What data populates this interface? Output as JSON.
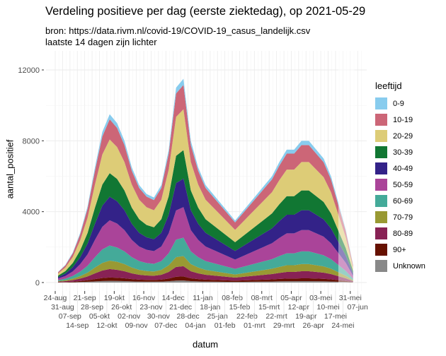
{
  "chart_data": {
    "type": "area",
    "stacked": true,
    "title": "Verdeling positieve per dag (eerste ziektedag), op 2021-05-29",
    "subtitle": [
      "bron: https://data.rivm.nl/covid-19/COVID-19_casus_landelijk.csv",
      "laatste 14 dagen zijn lichter"
    ],
    "xlabel": "datum",
    "ylabel": "aantal_positief",
    "ylim": [
      0,
      12500
    ],
    "yticks": [
      0,
      4000,
      8000,
      12000
    ],
    "xticks": [
      "24-aug",
      "31-aug",
      "07-sep",
      "14-sep",
      "21-sep",
      "28-sep",
      "05-okt",
      "12-okt",
      "19-okt",
      "26-okt",
      "02-nov",
      "09-nov",
      "16-nov",
      "23-nov",
      "30-nov",
      "07-dec",
      "14-dec",
      "21-dec",
      "28-dec",
      "04-jan",
      "11-jan",
      "18-jan",
      "25-jan",
      "01-feb",
      "08-feb",
      "15-feb",
      "22-feb",
      "01-mrt",
      "08-mrt",
      "15-mrt",
      "22-mrt",
      "29-mrt",
      "05-apr",
      "12-apr",
      "19-apr",
      "26-apr",
      "03-mei",
      "10-mei",
      "17-mei",
      "24-mei",
      "31-mei",
      "07-jun"
    ],
    "x": [
      "24-aug",
      "31-aug",
      "07-sep",
      "14-sep",
      "21-sep",
      "28-sep",
      "05-okt",
      "12-okt",
      "19-okt",
      "26-okt",
      "02-nov",
      "09-nov",
      "16-nov",
      "23-nov",
      "30-nov",
      "07-dec",
      "14-dec",
      "21-dec",
      "28-dec",
      "04-jan",
      "11-jan",
      "18-jan",
      "25-jan",
      "01-feb",
      "08-feb",
      "15-feb",
      "22-feb",
      "01-mrt",
      "08-mrt",
      "15-mrt",
      "22-mrt",
      "29-mrt",
      "05-apr",
      "12-apr",
      "19-apr",
      "26-apr",
      "03-mei",
      "10-mei",
      "17-mei",
      "24-mei",
      "31-mei"
    ],
    "totals": [
      600,
      1000,
      1700,
      2800,
      4300,
      6500,
      8500,
      9500,
      9000,
      8000,
      6500,
      5500,
      5000,
      4800,
      5500,
      7500,
      11000,
      11500,
      8000,
      6500,
      5500,
      5000,
      4500,
      4000,
      3500,
      4000,
      4500,
      5000,
      5500,
      6000,
      6800,
      7500,
      7500,
      8000,
      8000,
      7500,
      7000,
      6000,
      4500,
      3000,
      1000
    ],
    "lighter_from": "17-mei",
    "legend_title": "leeftijd",
    "legend_position": "right",
    "grid": true,
    "series": [
      {
        "name": "0-9",
        "color": "#88CCEE",
        "share": 0.03
      },
      {
        "name": "10-19",
        "color": "#CC6677",
        "share": 0.12
      },
      {
        "name": "20-29",
        "color": "#DDCC77",
        "share": 0.2
      },
      {
        "name": "30-39",
        "color": "#117733",
        "share": 0.14
      },
      {
        "name": "40-49",
        "color": "#332288",
        "share": 0.14
      },
      {
        "name": "50-59",
        "color": "#AA4499",
        "share": 0.15
      },
      {
        "name": "60-69",
        "color": "#44AA99",
        "share": 0.09
      },
      {
        "name": "70-79",
        "color": "#999933",
        "share": 0.05
      },
      {
        "name": "80-89",
        "color": "#882255",
        "share": 0.05
      },
      {
        "name": "90+",
        "color": "#661100",
        "share": 0.02
      },
      {
        "name": "Unknown",
        "color": "#888888",
        "share": 0.01
      }
    ]
  }
}
